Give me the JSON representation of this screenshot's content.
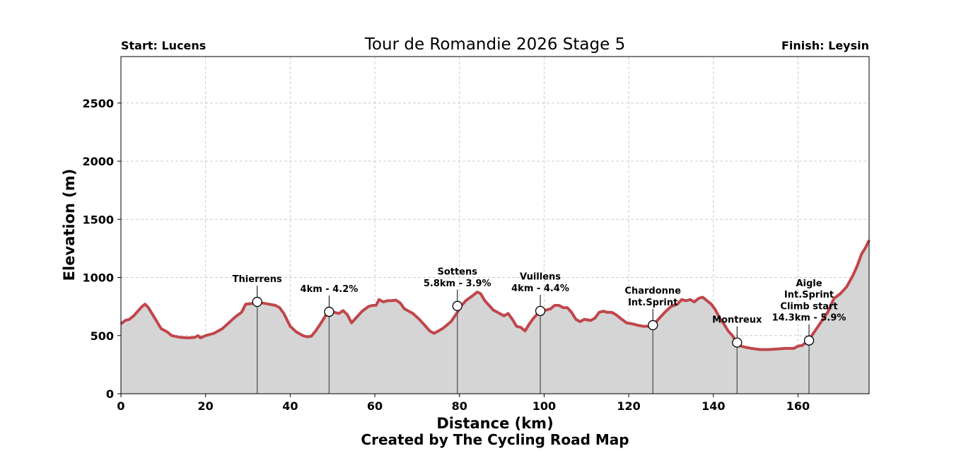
{
  "chart_data": {
    "type": "area",
    "title": "Tour de Romandie 2026 Stage 5",
    "start_label": "Start: Lucens",
    "finish_label": "Finish: Leysin",
    "xlabel": "Distance (km)",
    "ylabel": "Elevation (m)",
    "credit": "Created by The Cycling Road Map",
    "xlim": [
      0,
      176.8
    ],
    "ylim": [
      0,
      2900
    ],
    "xticks": [
      "0",
      "20",
      "40",
      "60",
      "80",
      "100",
      "120",
      "140",
      "160"
    ],
    "yticks": [
      "0",
      "500",
      "1000",
      "1500",
      "2000",
      "2500"
    ],
    "grid": true,
    "line_color": "#c0464b",
    "fill_color": "#d5d5d5",
    "profile": [
      [
        0,
        600
      ],
      [
        1,
        630
      ],
      [
        2,
        640
      ],
      [
        3,
        670
      ],
      [
        4,
        710
      ],
      [
        5,
        750
      ],
      [
        5.7,
        770
      ],
      [
        6.5,
        740
      ],
      [
        7.5,
        680
      ],
      [
        8.5,
        620
      ],
      [
        9.5,
        560
      ],
      [
        11,
        530
      ],
      [
        12,
        500
      ],
      [
        14,
        485
      ],
      [
        16,
        480
      ],
      [
        17.5,
        485
      ],
      [
        18.2,
        500
      ],
      [
        18.8,
        480
      ],
      [
        20,
        500
      ],
      [
        22,
        520
      ],
      [
        24,
        560
      ],
      [
        25.5,
        610
      ],
      [
        27,
        660
      ],
      [
        28.5,
        700
      ],
      [
        29.5,
        770
      ],
      [
        31,
        775
      ],
      [
        32.2,
        790
      ],
      [
        33.5,
        780
      ],
      [
        35,
        770
      ],
      [
        36.5,
        760
      ],
      [
        37.5,
        740
      ],
      [
        38.5,
        690
      ],
      [
        40,
        580
      ],
      [
        41.5,
        530
      ],
      [
        43,
        500
      ],
      [
        44,
        490
      ],
      [
        45,
        495
      ],
      [
        46,
        540
      ],
      [
        47.5,
        620
      ],
      [
        48.5,
        680
      ],
      [
        49.2,
        710
      ],
      [
        50.5,
        700
      ],
      [
        51.5,
        690
      ],
      [
        52.5,
        715
      ],
      [
        53.5,
        680
      ],
      [
        54.5,
        610
      ],
      [
        55.5,
        650
      ],
      [
        57,
        710
      ],
      [
        58.5,
        750
      ],
      [
        59.5,
        760
      ],
      [
        60.3,
        760
      ],
      [
        61,
        810
      ],
      [
        62,
        790
      ],
      [
        63,
        800
      ],
      [
        64,
        800
      ],
      [
        65,
        805
      ],
      [
        66,
        780
      ],
      [
        67,
        730
      ],
      [
        69,
        690
      ],
      [
        70.5,
        640
      ],
      [
        72,
        580
      ],
      [
        73,
        540
      ],
      [
        74,
        520
      ],
      [
        75,
        540
      ],
      [
        76,
        560
      ],
      [
        78,
        620
      ],
      [
        79.5,
        700
      ],
      [
        80.5,
        760
      ],
      [
        81.5,
        800
      ],
      [
        83,
        840
      ],
      [
        84.2,
        875
      ],
      [
        85,
        860
      ],
      [
        86,
        800
      ],
      [
        87,
        760
      ],
      [
        88,
        720
      ],
      [
        89.5,
        690
      ],
      [
        90.5,
        670
      ],
      [
        91.5,
        690
      ],
      [
        92.5,
        640
      ],
      [
        93.5,
        580
      ],
      [
        94.5,
        570
      ],
      [
        95.5,
        540
      ],
      [
        96.5,
        600
      ],
      [
        97.5,
        650
      ],
      [
        99,
        710
      ],
      [
        100.5,
        720
      ],
      [
        101.5,
        730
      ],
      [
        102.5,
        760
      ],
      [
        103.5,
        760
      ],
      [
        104.5,
        740
      ],
      [
        105.5,
        740
      ],
      [
        106.5,
        700
      ],
      [
        107.5,
        640
      ],
      [
        108.5,
        620
      ],
      [
        109.5,
        640
      ],
      [
        111,
        630
      ],
      [
        112,
        650
      ],
      [
        113,
        700
      ],
      [
        114,
        710
      ],
      [
        115,
        700
      ],
      [
        116,
        700
      ],
      [
        117,
        680
      ],
      [
        118,
        650
      ],
      [
        119.5,
        610
      ],
      [
        121,
        600
      ],
      [
        122,
        590
      ],
      [
        123.5,
        580
      ],
      [
        125,
        580
      ],
      [
        125.9,
        595
      ],
      [
        127,
        640
      ],
      [
        128.5,
        700
      ],
      [
        130,
        750
      ],
      [
        131.5,
        770
      ],
      [
        132.5,
        810
      ],
      [
        133.5,
        800
      ],
      [
        134.5,
        810
      ],
      [
        135.5,
        790
      ],
      [
        136.5,
        820
      ],
      [
        137.5,
        830
      ],
      [
        138.5,
        800
      ],
      [
        139.5,
        770
      ],
      [
        140.5,
        720
      ],
      [
        141.5,
        650
      ],
      [
        142.5,
        600
      ],
      [
        143.5,
        540
      ],
      [
        144.5,
        500
      ],
      [
        145.5,
        440
      ],
      [
        146.5,
        410
      ],
      [
        147.5,
        400
      ],
      [
        149,
        390
      ],
      [
        151,
        380
      ],
      [
        153,
        380
      ],
      [
        155,
        385
      ],
      [
        157,
        390
      ],
      [
        159,
        390
      ],
      [
        160,
        410
      ],
      [
        161,
        415
      ],
      [
        162.5,
        460
      ],
      [
        164,
        540
      ],
      [
        165.5,
        620
      ],
      [
        167,
        700
      ],
      [
        168.5,
        820
      ],
      [
        170,
        860
      ],
      [
        171.5,
        920
      ],
      [
        173,
        1020
      ],
      [
        174,
        1100
      ],
      [
        175,
        1200
      ],
      [
        176,
        1260
      ],
      [
        176.8,
        1320
      ]
    ],
    "annotations": [
      {
        "x": 32.2,
        "y": 790,
        "lines": [
          "Thierrens"
        ]
      },
      {
        "x": 49.2,
        "y": 705,
        "lines": [
          "4km - 4.2%"
        ]
      },
      {
        "x": 79.5,
        "y": 755,
        "lines": [
          "Sottens",
          "5.8km - 3.9%"
        ]
      },
      {
        "x": 99.1,
        "y": 712,
        "lines": [
          "Vuillens",
          "4km - 4.4%"
        ]
      },
      {
        "x": 125.7,
        "y": 590,
        "lines": [
          "Chardonne",
          "Int.Sprint"
        ]
      },
      {
        "x": 145.6,
        "y": 440,
        "lines": [
          "Montreux"
        ]
      },
      {
        "x": 162.6,
        "y": 458,
        "lines": [
          "Aigle",
          "Int.Sprint",
          "Climb start",
          "14.3km - 5.9%"
        ]
      }
    ]
  }
}
